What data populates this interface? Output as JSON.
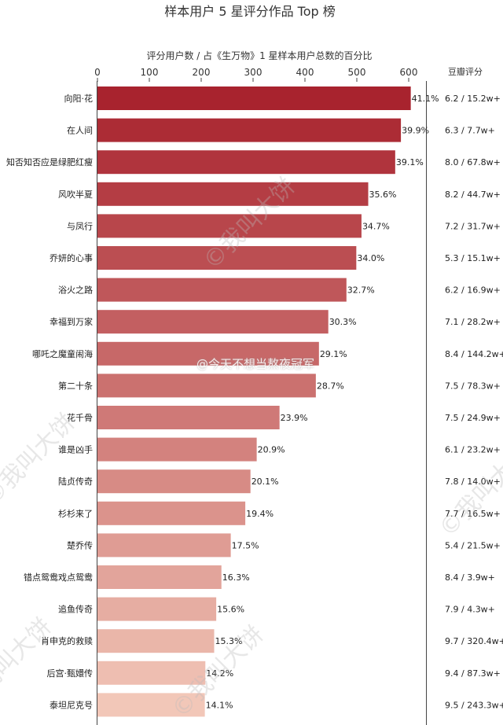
{
  "chart_data": {
    "type": "bar",
    "orientation": "horizontal",
    "title": "样本用户 5 星评分作品 Top 榜",
    "subtitle": "评分用户数 / 占《生万物》1 星样本用户总数的百分比",
    "right_header": "豆瓣评分",
    "xlim": [
      0,
      620
    ],
    "x_ticks": [
      0,
      100,
      200,
      300,
      400,
      500,
      600
    ],
    "grid": false,
    "categories": [
      "向阳·花",
      "在人间",
      "知否知否应是绿肥红瘦",
      "风吹半夏",
      "与凤行",
      "乔妍的心事",
      "浴火之路",
      "幸福到万家",
      "哪吒之魔童闹海",
      "第二十条",
      "花千骨",
      "谁是凶手",
      "陆贞传奇",
      "杉杉来了",
      "楚乔传",
      "错点鸳鸯戏点鸳鸯",
      "追鱼传奇",
      "肖申克的救赎",
      "后宫·甄嬛传",
      "泰坦尼克号"
    ],
    "values": [
      604,
      585,
      574,
      522,
      509,
      499,
      480,
      445,
      427,
      421,
      351,
      307,
      295,
      285,
      257,
      239,
      229,
      225,
      208,
      207
    ],
    "data_labels": [
      "41.1%",
      "39.9%",
      "39.1%",
      "35.6%",
      "34.7%",
      "34.0%",
      "32.7%",
      "30.3%",
      "29.1%",
      "28.7%",
      "23.9%",
      "20.9%",
      "20.1%",
      "19.4%",
      "17.5%",
      "16.3%",
      "15.6%",
      "15.3%",
      "14.2%",
      "14.1%"
    ],
    "douban_scores": [
      "6.2 / 15.2w+",
      "6.3 / 7.7w+",
      "8.0 / 67.8w+",
      "8.2 / 44.7w+",
      "7.2 / 31.7w+",
      "5.3 / 15.1w+",
      "6.2 / 16.9w+",
      "7.1 / 28.2w+",
      "8.4 / 144.2w+",
      "7.5 / 78.3w+",
      "7.5 / 24.9w+",
      "6.1 / 23.2w+",
      "7.8 / 14.0w+",
      "7.7 / 16.5w+",
      "5.4 / 21.5w+",
      "8.4 / 3.9w+",
      "7.9 / 4.3w+",
      "9.7 / 320.4w+",
      "9.4 / 87.3w+",
      "9.5 / 243.3w+"
    ],
    "color_start": "#a8232e",
    "color_end": "#f2c7b8"
  },
  "watermarks": {
    "author": "©我叫大饼",
    "weibo": "@今天不想当熬夜冠军"
  }
}
